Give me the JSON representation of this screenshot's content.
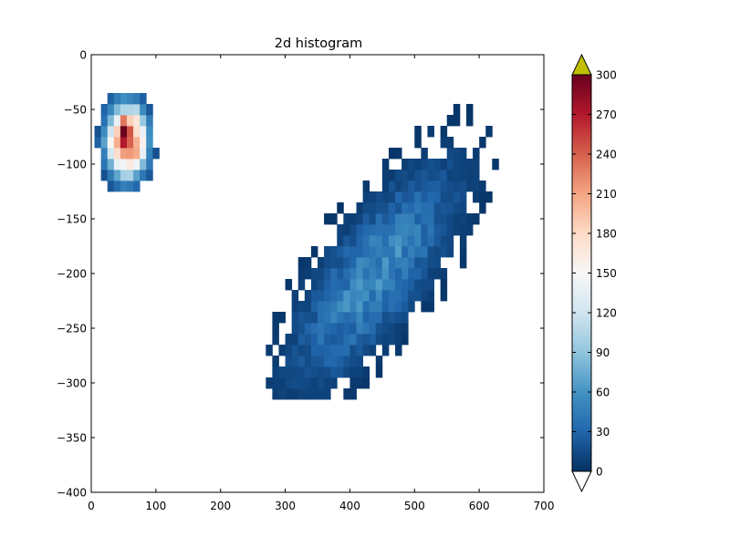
{
  "chart_data": {
    "type": "heatmap",
    "title": "2d histogram",
    "xlabel": "",
    "ylabel": "",
    "xlim": [
      0,
      700
    ],
    "ylim": [
      -400,
      0
    ],
    "x_ticks": [
      "0",
      "100",
      "200",
      "300",
      "400",
      "500",
      "600",
      "700"
    ],
    "y_ticks": [
      "0",
      "−50",
      "−100",
      "−150",
      "−200",
      "−250",
      "−300",
      "−350",
      "−400"
    ],
    "grid": false,
    "colorbar": {
      "range": [
        0,
        300
      ],
      "ticks": [
        "0",
        "30",
        "60",
        "90",
        "120",
        "150",
        "180",
        "210",
        "240",
        "270",
        "300"
      ],
      "extend_over_color": "#bfbf00",
      "extend_under_color": "#ffffff",
      "colormap": "RdBu_r"
    },
    "bin_size": [
      10,
      10
    ],
    "clusters": [
      {
        "label_shown": "",
        "center": [
          55,
          -78
        ],
        "peak_count": 300,
        "x_range": [
          5,
          105
        ],
        "y_range": [
          -135,
          -35
        ]
      },
      {
        "label_shown": "",
        "center": [
          440,
          -200
        ],
        "peak_count": 65,
        "x_range": [
          270,
          625
        ],
        "y_range": [
          -315,
          -30
        ]
      }
    ]
  }
}
